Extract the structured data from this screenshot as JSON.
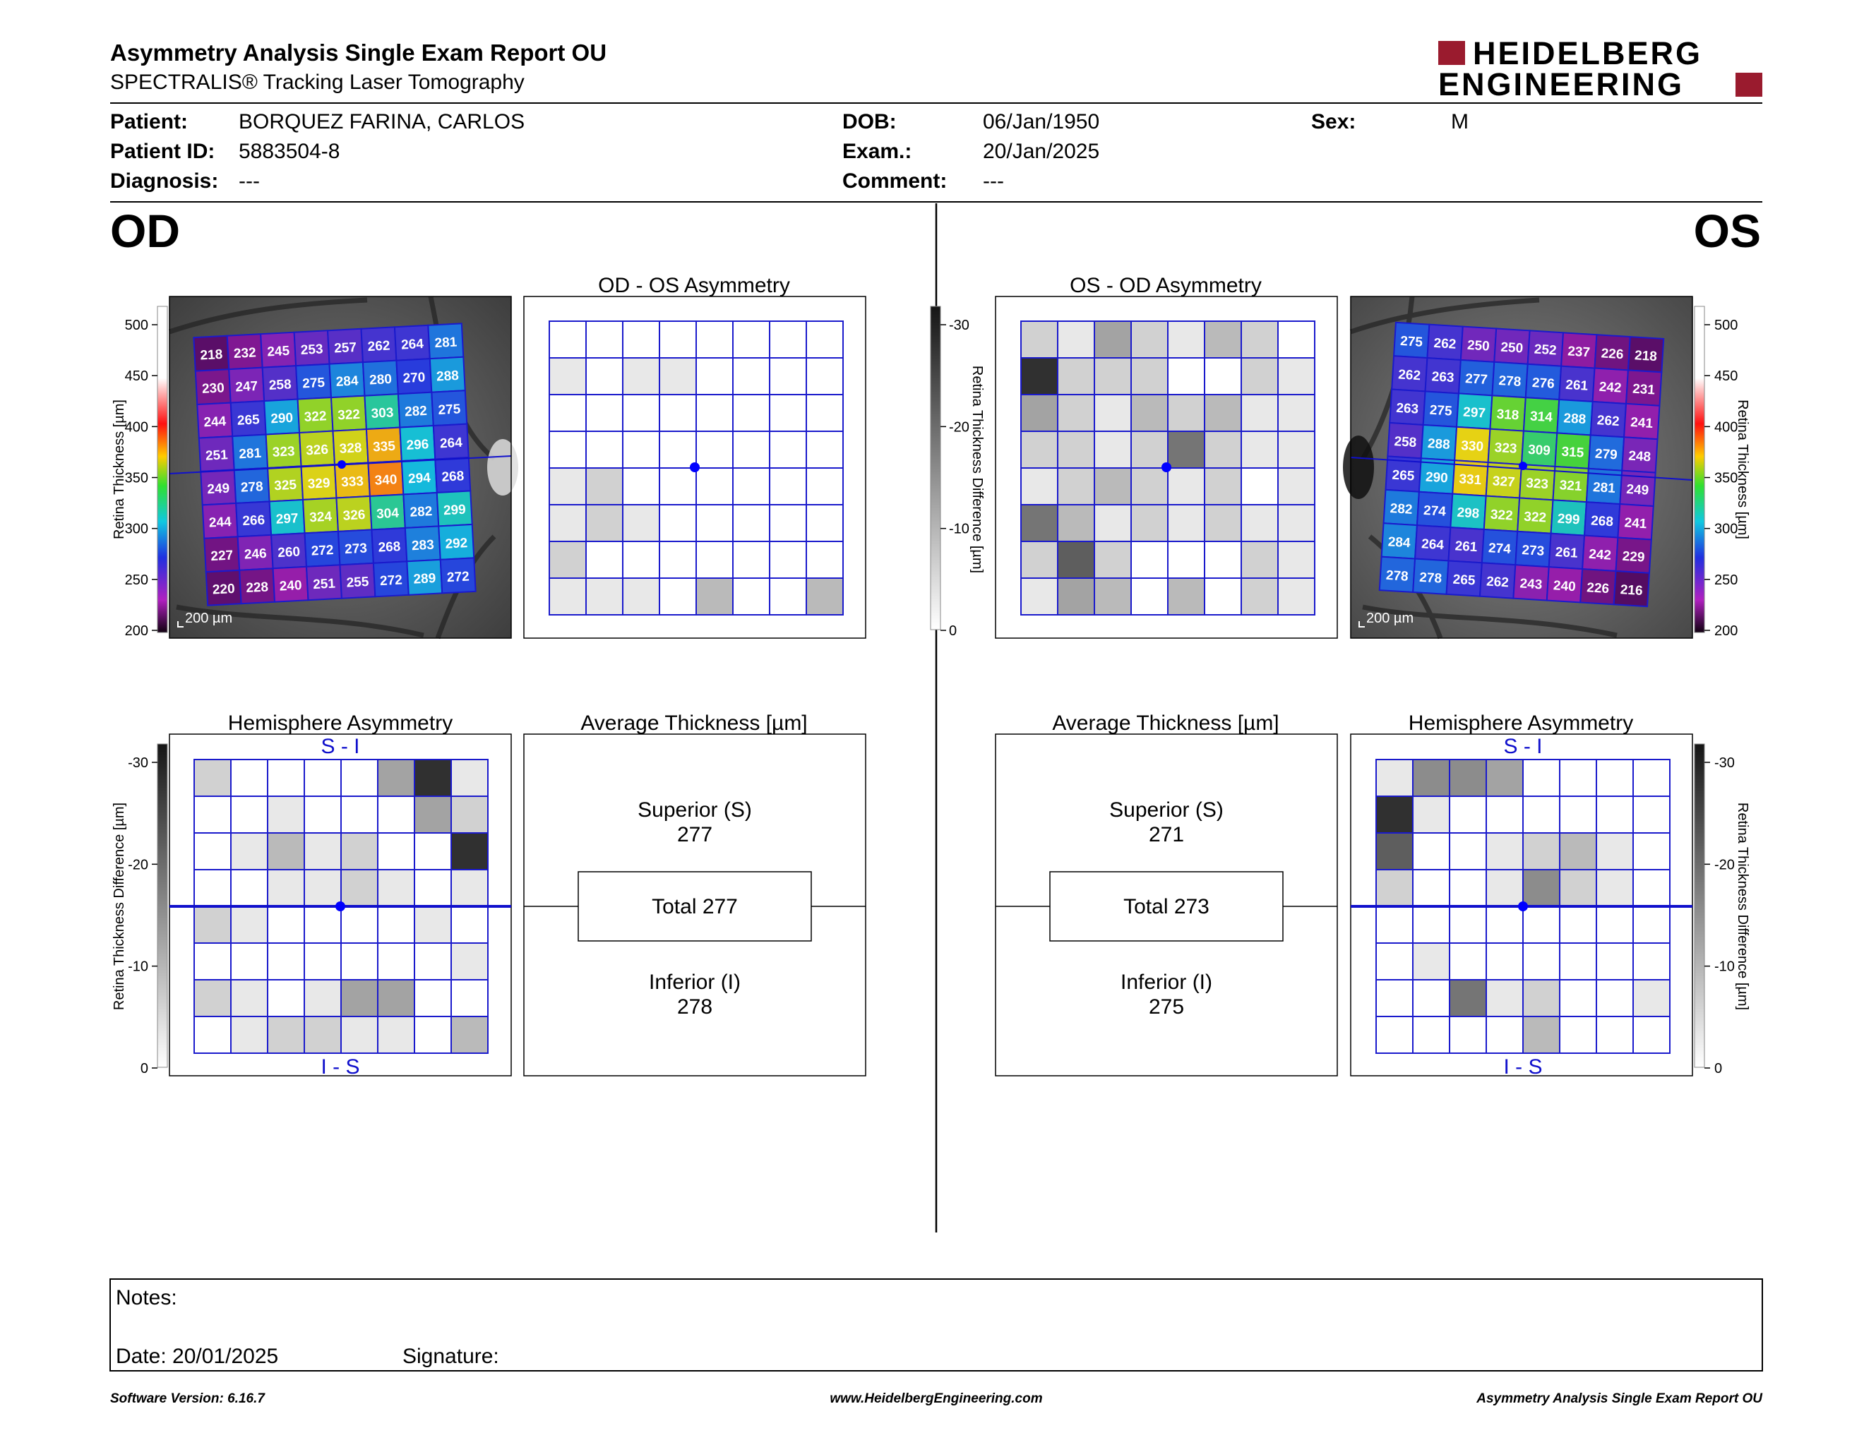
{
  "header": {
    "title": "Asymmetry Analysis Single Exam Report OU",
    "subtitle": "SPECTRALIS® Tracking Laser Tomography",
    "logo_line1": "HEIDELBERG",
    "logo_line2": "ENGINEERING"
  },
  "patient": {
    "patient_label": "Patient:",
    "patient_value": "BORQUEZ FARINA, CARLOS",
    "id_label": "Patient ID:",
    "id_value": "5883504-8",
    "diagnosis_label": "Diagnosis:",
    "diagnosis_value": "---",
    "dob_label": "DOB:",
    "dob_value": "06/Jan/1950",
    "exam_label": "Exam.:",
    "exam_value": "20/Jan/2025",
    "comment_label": "Comment:",
    "comment_value": "---",
    "sex_label": "Sex:",
    "sex_value": "M"
  },
  "eyes": {
    "od": "OD",
    "os": "OS"
  },
  "panels": {
    "od_os_title": "OD - OS Asymmetry",
    "os_od_title": "OS - OD Asymmetry",
    "hemi_title": "Hemisphere Asymmetry",
    "avg_title": "Average Thickness [µm]",
    "scale_bar": "200 µm",
    "si_label": "S - I",
    "is_label": "I - S"
  },
  "scales": {
    "thickness_label": "Retina Thickness [µm]",
    "thickness_ticks": [
      "500",
      "450",
      "400",
      "350",
      "300",
      "250",
      "200"
    ],
    "diff_label": "Retina Thickness Difference [µm]",
    "diff_ticks": [
      "-30",
      "-20",
      "-10",
      "0"
    ]
  },
  "colors": {
    "grid_blue": "#1010cc",
    "center_dot": "#0000ff"
  },
  "od_thickness": [
    [
      218,
      232,
      245,
      253,
      257,
      262,
      264,
      281
    ],
    [
      230,
      247,
      258,
      275,
      284,
      280,
      270,
      288
    ],
    [
      244,
      265,
      290,
      322,
      322,
      303,
      282,
      275
    ],
    [
      251,
      281,
      323,
      326,
      328,
      335,
      296,
      264
    ],
    [
      249,
      278,
      325,
      329,
      333,
      340,
      294,
      268
    ],
    [
      244,
      266,
      297,
      324,
      326,
      304,
      282,
      299
    ],
    [
      227,
      246,
      260,
      272,
      273,
      268,
      283,
      292
    ],
    [
      220,
      228,
      240,
      251,
      255,
      272,
      289,
      272
    ]
  ],
  "os_thickness": [
    [
      275,
      262,
      250,
      250,
      252,
      237,
      226,
      218
    ],
    [
      262,
      263,
      277,
      278,
      276,
      261,
      242,
      231
    ],
    [
      263,
      275,
      297,
      318,
      314,
      288,
      262,
      241
    ],
    [
      258,
      288,
      330,
      323,
      309,
      315,
      279,
      248
    ],
    [
      265,
      290,
      331,
      327,
      323,
      321,
      281,
      249
    ],
    [
      282,
      274,
      298,
      322,
      322,
      299,
      268,
      241
    ],
    [
      284,
      264,
      261,
      274,
      273,
      261,
      242,
      229
    ],
    [
      278,
      278,
      265,
      262,
      243,
      240,
      226,
      216
    ]
  ],
  "od_os_asym_gray": [
    [
      0,
      0,
      0,
      0,
      0,
      0,
      0,
      0
    ],
    [
      1,
      0,
      1,
      1,
      0,
      0,
      0,
      0
    ],
    [
      0,
      0,
      0,
      0,
      0,
      0,
      0,
      0
    ],
    [
      0,
      0,
      0,
      0,
      0,
      0,
      0,
      0
    ],
    [
      1,
      2,
      0,
      0,
      0,
      0,
      0,
      0
    ],
    [
      1,
      2,
      1,
      0,
      0,
      0,
      0,
      0
    ],
    [
      2,
      0,
      0,
      0,
      0,
      0,
      0,
      0
    ],
    [
      1,
      1,
      1,
      0,
      3,
      0,
      0,
      3
    ]
  ],
  "os_od_asym_gray": [
    [
      2,
      1,
      4,
      2,
      1,
      3,
      2,
      0
    ],
    [
      9,
      2,
      2,
      2,
      0,
      0,
      2,
      1
    ],
    [
      4,
      2,
      1,
      3,
      2,
      3,
      1,
      1
    ],
    [
      2,
      2,
      1,
      2,
      6,
      2,
      1,
      1
    ],
    [
      1,
      2,
      3,
      2,
      1,
      2,
      0,
      1
    ],
    [
      6,
      3,
      1,
      2,
      1,
      2,
      1,
      1
    ],
    [
      2,
      7,
      2,
      0,
      0,
      0,
      2,
      1
    ],
    [
      1,
      4,
      3,
      0,
      3,
      0,
      2,
      1
    ]
  ],
  "od_hemi_gray": [
    [
      2,
      0,
      0,
      0,
      0,
      4,
      9,
      1
    ],
    [
      0,
      0,
      1,
      0,
      0,
      0,
      4,
      2
    ],
    [
      0,
      1,
      3,
      1,
      2,
      0,
      0,
      9
    ],
    [
      0,
      0,
      1,
      1,
      2,
      1,
      0,
      1
    ],
    [
      2,
      1,
      0,
      0,
      0,
      0,
      1,
      0
    ],
    [
      0,
      0,
      0,
      0,
      0,
      0,
      0,
      1
    ],
    [
      2,
      1,
      0,
      1,
      4,
      4,
      0,
      0
    ],
    [
      0,
      1,
      2,
      2,
      1,
      1,
      0,
      3
    ]
  ],
  "os_hemi_gray": [
    [
      1,
      5,
      5,
      4,
      0,
      0,
      0,
      0
    ],
    [
      9,
      1,
      0,
      0,
      0,
      0,
      0,
      0
    ],
    [
      7,
      0,
      0,
      1,
      2,
      3,
      1,
      0
    ],
    [
      2,
      0,
      0,
      1,
      5,
      2,
      1,
      0
    ],
    [
      0,
      0,
      0,
      0,
      0,
      0,
      0,
      0
    ],
    [
      0,
      1,
      0,
      0,
      0,
      0,
      0,
      0
    ],
    [
      0,
      0,
      6,
      1,
      2,
      0,
      0,
      1
    ],
    [
      0,
      0,
      0,
      0,
      3,
      0,
      0,
      0
    ]
  ],
  "od_avg": {
    "superior_label": "Superior (S)",
    "superior_value": "277",
    "total": "Total 277",
    "inferior_label": "Inferior (I)",
    "inferior_value": "278"
  },
  "os_avg": {
    "superior_label": "Superior (S)",
    "superior_value": "271",
    "total": "Total 273",
    "inferior_label": "Inferior (I)",
    "inferior_value": "275"
  },
  "notes": {
    "notes_label": "Notes:",
    "date_label": "Date: 20/01/2025",
    "signature_label": "Signature:"
  },
  "footer": {
    "left": "Software Version: 6.16.7",
    "center": "www.HeidelbergEngineering.com",
    "right": "Asymmetry Analysis Single Exam Report OU"
  }
}
